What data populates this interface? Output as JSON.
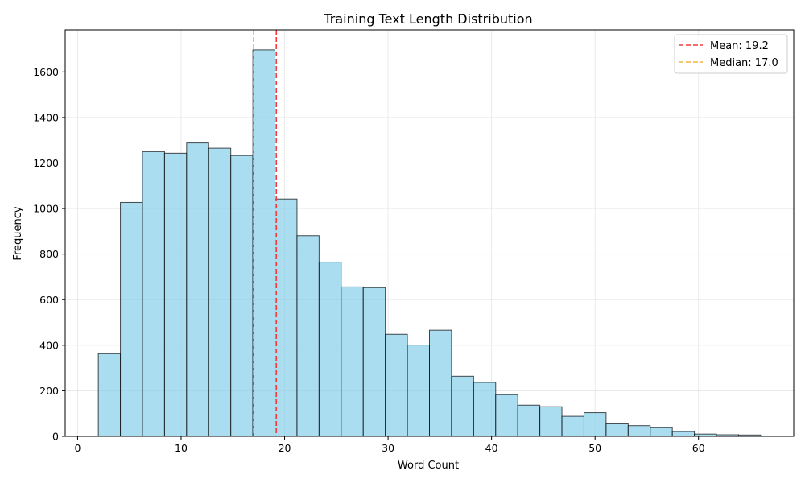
{
  "chart_data": {
    "type": "bar",
    "title": "Training Text Length Distribution",
    "xlabel": "Word Count",
    "ylabel": "Frequency",
    "xlim": [
      -1.2,
      69.2
    ],
    "ylim": [
      0,
      1785
    ],
    "xticks": [
      0,
      10,
      20,
      30,
      40,
      50,
      60
    ],
    "yticks": [
      0,
      200,
      400,
      600,
      800,
      1000,
      1200,
      1400,
      1600
    ],
    "grid": true,
    "bin_edges": [
      2.0,
      4.133,
      6.267,
      8.4,
      10.533,
      12.667,
      14.8,
      16.933,
      19.067,
      21.2,
      23.333,
      25.467,
      27.6,
      29.733,
      31.867,
      34.0,
      36.133,
      38.267,
      40.4,
      42.533,
      44.667,
      46.8,
      48.933,
      51.067,
      53.2,
      55.333,
      57.467,
      59.6,
      61.733,
      63.867,
      66.0
    ],
    "counts": [
      363,
      1027,
      1250,
      1243,
      1288,
      1265,
      1233,
      1697,
      1042,
      881,
      765,
      656,
      653,
      448,
      401,
      466,
      264,
      237,
      183,
      137,
      130,
      88,
      104,
      55,
      47,
      38,
      21,
      10,
      7,
      6
    ],
    "bar_color": "#87CEEB",
    "bar_edge_color": "#000000",
    "reference_lines": [
      {
        "label": "Mean: 19.2",
        "value": 19.2,
        "color": "#f03c3c"
      },
      {
        "label": "Median: 17.0",
        "value": 17.0,
        "color": "#f5b642"
      }
    ],
    "legend_position": "upper-right"
  }
}
